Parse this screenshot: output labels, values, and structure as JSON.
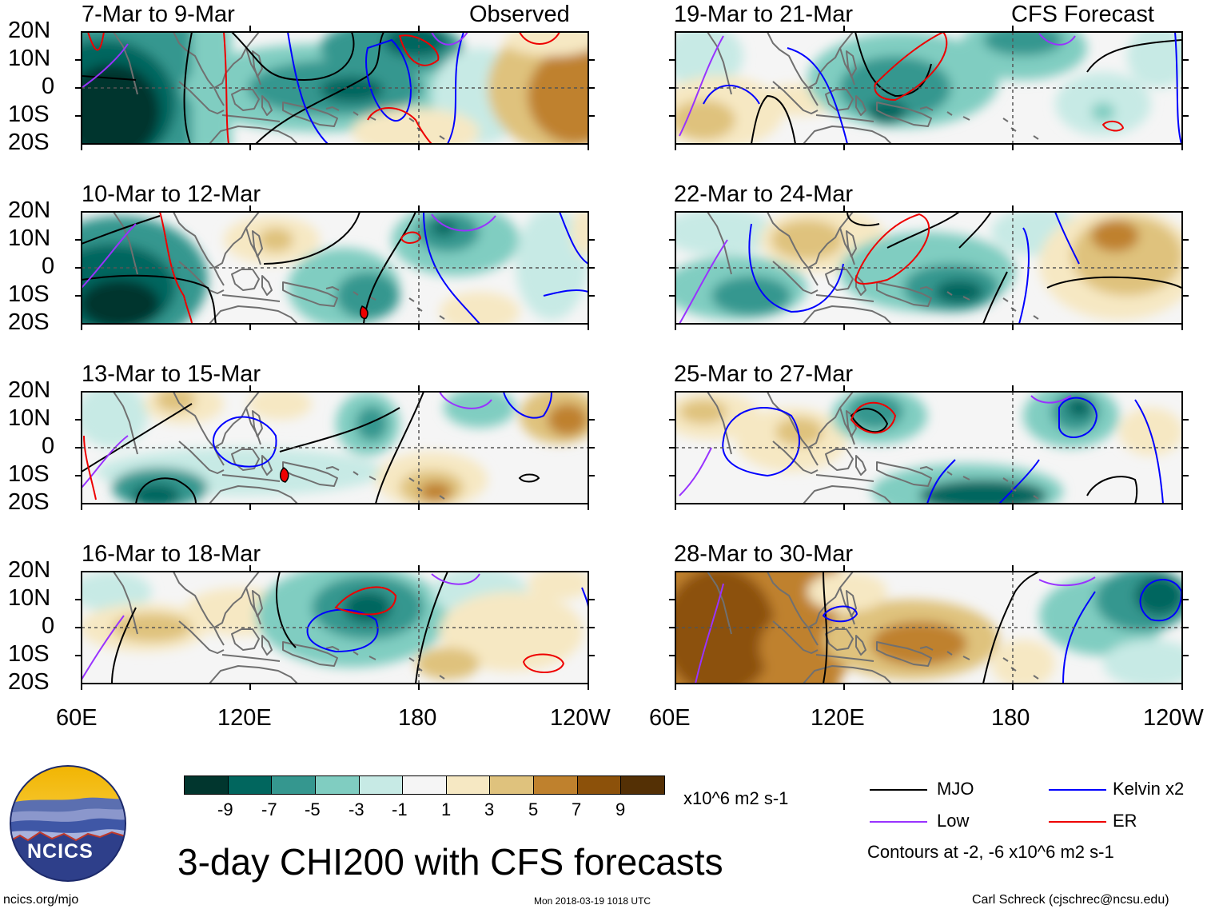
{
  "columns": [
    {
      "tag": "Observed"
    },
    {
      "tag": "CFS Forecast"
    }
  ],
  "panels": [
    {
      "date_range": "7-Mar to 9-Mar"
    },
    {
      "date_range": "10-Mar to 12-Mar"
    },
    {
      "date_range": "13-Mar to 15-Mar"
    },
    {
      "date_range": "16-Mar to 18-Mar"
    },
    {
      "date_range": "19-Mar to 21-Mar"
    },
    {
      "date_range": "22-Mar to 24-Mar"
    },
    {
      "date_range": "25-Mar to 27-Mar"
    },
    {
      "date_range": "28-Mar to 30-Mar"
    }
  ],
  "lat_ticks": [
    "20N",
    "10N",
    "0",
    "10S",
    "20S"
  ],
  "lon_ticks": [
    "60E",
    "120E",
    "180",
    "120W"
  ],
  "colorbar": {
    "labels": [
      "-9",
      "-7",
      "-5",
      "-3",
      "-1",
      "1",
      "3",
      "5",
      "7",
      "9"
    ],
    "units": "x10^6 m2 s-1",
    "colors": [
      "#01362e",
      "#01665e",
      "#35978f",
      "#80cdc1",
      "#c7eae5",
      "#f5f5f5",
      "#f6e8c3",
      "#dfc27d",
      "#bf812d",
      "#8c510a",
      "#543005"
    ]
  },
  "legend": {
    "items": [
      {
        "label": "MJO",
        "color": "#000000"
      },
      {
        "label": "Kelvin x2",
        "color": "#0000ff"
      },
      {
        "label": "Low",
        "color": "#9933ff"
      },
      {
        "label": "ER",
        "color": "#ee0000"
      }
    ],
    "contours_note": "Contours at -2, -6 x10^6 m2 s-1"
  },
  "title": "3-day CHI200 with CFS forecasts",
  "logo_text": "NCICS",
  "footer": {
    "url": "ncics.org/mjo",
    "timestamp": "Mon 2018-03-19 1018 UTC",
    "credit": "Carl Schreck (cjschrec@ncsu.edu)"
  }
}
